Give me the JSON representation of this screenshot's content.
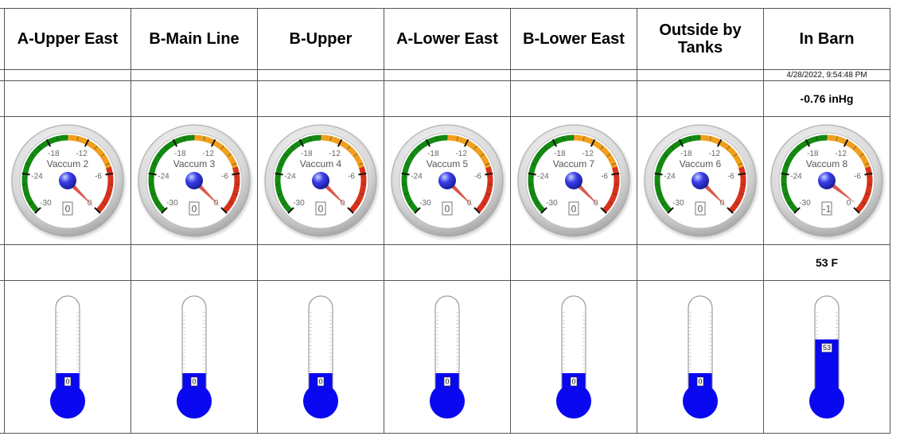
{
  "columns": [
    {
      "title": "A-Upper East",
      "timestamp": "",
      "vacuum_text": "",
      "gauge": {
        "label": "Vaccum 2",
        "value": 0,
        "readout": "0"
      },
      "temp_text": "",
      "thermometer": {
        "value": 0,
        "readout": "0"
      }
    },
    {
      "title": "B-Main Line",
      "timestamp": "",
      "vacuum_text": "",
      "gauge": {
        "label": "Vaccum 3",
        "value": 0,
        "readout": "0"
      },
      "temp_text": "",
      "thermometer": {
        "value": 0,
        "readout": "0"
      }
    },
    {
      "title": "B-Upper",
      "timestamp": "",
      "vacuum_text": "",
      "gauge": {
        "label": "Vaccum 4",
        "value": 0,
        "readout": "0"
      },
      "temp_text": "",
      "thermometer": {
        "value": 0,
        "readout": "0"
      }
    },
    {
      "title": "A-Lower East",
      "timestamp": "",
      "vacuum_text": "",
      "gauge": {
        "label": "Vaccum 5",
        "value": 0,
        "readout": "0"
      },
      "temp_text": "",
      "thermometer": {
        "value": 0,
        "readout": "0"
      }
    },
    {
      "title": "B-Lower East",
      "timestamp": "",
      "vacuum_text": "",
      "gauge": {
        "label": "Vaccum 7",
        "value": 0,
        "readout": "0"
      },
      "temp_text": "",
      "thermometer": {
        "value": 0,
        "readout": "0"
      }
    },
    {
      "title": "Outside by Tanks",
      "timestamp": "",
      "vacuum_text": "",
      "gauge": {
        "label": "Vaccum 6",
        "value": 0,
        "readout": "0"
      },
      "temp_text": "",
      "thermometer": {
        "value": 0,
        "readout": "0"
      }
    },
    {
      "title": "In Barn",
      "timestamp": "4/28/2022, 9:54:48 PM",
      "vacuum_text": "-0.76 inHg",
      "gauge": {
        "label": "Vaccum 8",
        "value": -0.76,
        "readout": "-1"
      },
      "temp_text": "53 F",
      "thermometer": {
        "value": 53,
        "readout": "53"
      }
    }
  ],
  "gauge_scale": {
    "min": -30,
    "max": 0,
    "tick_labels": [
      "-30",
      "-24",
      "-18",
      "-12",
      "-6",
      "0"
    ],
    "bands": [
      {
        "from": -30,
        "to": -15,
        "color": "#138a10"
      },
      {
        "from": -15,
        "to": -7,
        "color": "#f0a01e"
      },
      {
        "from": -7,
        "to": 0,
        "color": "#d8321b"
      }
    ],
    "needle_color": "#d9594a",
    "hub_color": "#3a3ee8"
  },
  "thermometer_scale": {
    "min": 0,
    "max": 100,
    "fill_color": "#0a08f0"
  }
}
